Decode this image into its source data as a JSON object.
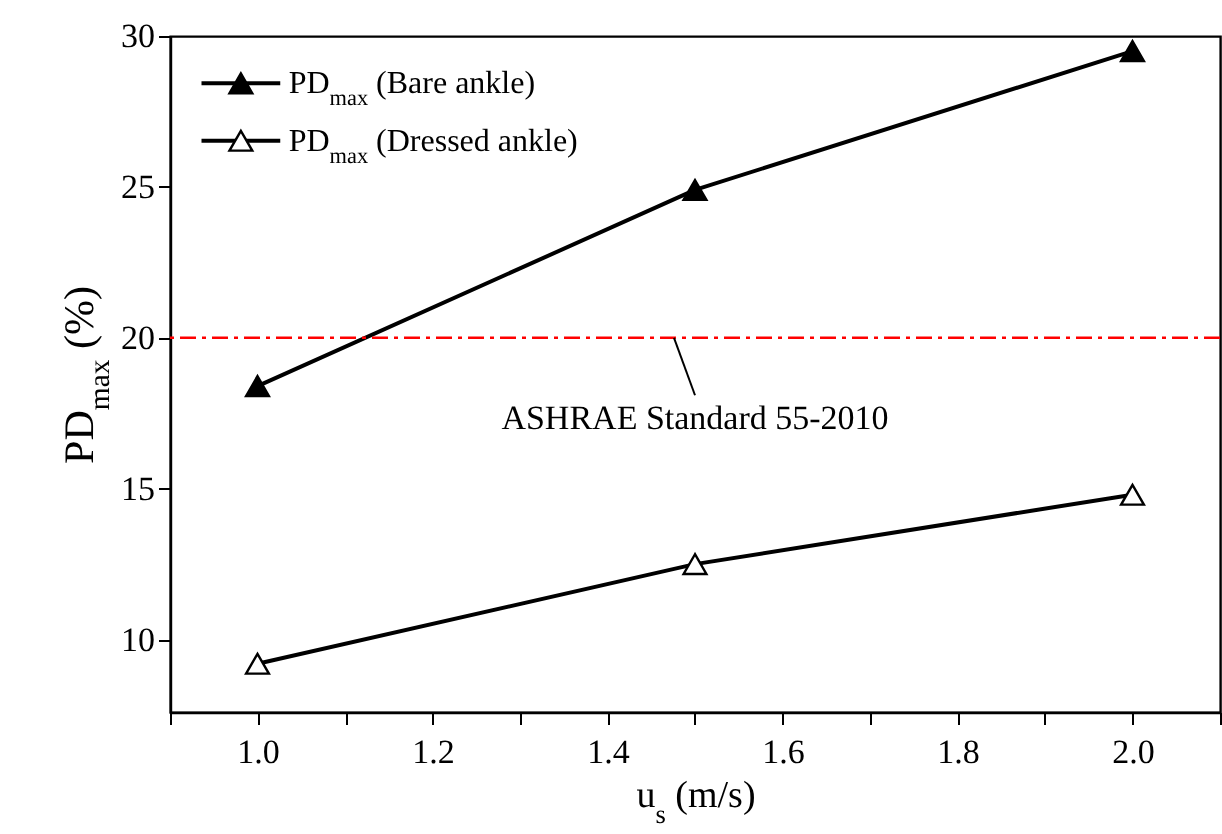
{
  "chart_data": {
    "type": "line",
    "xlabel": "u$_{s}$ (m/s)",
    "ylabel": "PD$_{max}$ (%)",
    "x": [
      1.0,
      1.5,
      2.0
    ],
    "series": [
      {
        "name": "PD$_{max}$ (Bare ankle)",
        "color": "#000000",
        "values": [
          18.4,
          24.9,
          29.5
        ]
      },
      {
        "name": "PD$_{max}$ (Dressed ankle)",
        "color": "#000000",
        "values": [
          9.2,
          12.5,
          14.8
        ]
      }
    ],
    "xlim": [
      0.9,
      2.1
    ],
    "ylim": [
      7.6,
      30
    ],
    "xticks": [
      {
        "value": 0.9,
        "label": null
      },
      {
        "value": 1.0,
        "label": "1.0"
      },
      {
        "value": 1.1,
        "label": null
      },
      1.2,
      {
        "value": 1.3,
        "label": null
      },
      1.4,
      {
        "value": 1.5,
        "label": null
      },
      1.6,
      {
        "value": 1.7,
        "label": null
      },
      1.8,
      {
        "value": 1.9,
        "label": null
      },
      {
        "value": 2.0,
        "label": "2.0"
      },
      {
        "value": 2.1,
        "label": null
      }
    ],
    "yticks": [
      10,
      15,
      20,
      25,
      30
    ],
    "ref_lines": [
      {
        "axis": "y",
        "value": 20,
        "label": "ASHRAE Standard 55-2010",
        "color": "#ff0000",
        "line_style": "dashdot"
      }
    ],
    "marker": "triangle",
    "legend": "top left",
    "grid": false
  }
}
